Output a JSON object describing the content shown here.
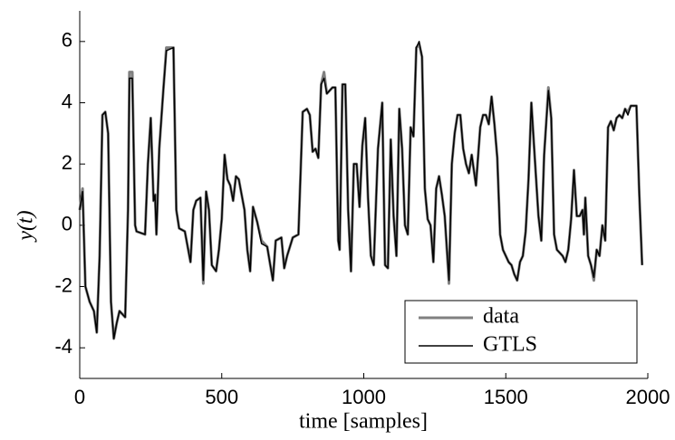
{
  "chart_data": {
    "type": "line",
    "x_label": "time [samples]",
    "y_label": "y(t)",
    "xlim": [
      0,
      2000
    ],
    "ylim": [
      -5,
      7
    ],
    "xticks": [
      0,
      500,
      1000,
      1500,
      2000
    ],
    "yticks": [
      -4,
      -2,
      0,
      2,
      4,
      6
    ],
    "legend": "lower right",
    "x": [
      0,
      10,
      20,
      35,
      50,
      60,
      70,
      80,
      90,
      100,
      110,
      120,
      130,
      140,
      150,
      160,
      170,
      175,
      185,
      195,
      200,
      230,
      240,
      250,
      260,
      265,
      270,
      280,
      295,
      305,
      330,
      340,
      350,
      370,
      390,
      400,
      410,
      425,
      435,
      445,
      455,
      465,
      480,
      490,
      500,
      510,
      520,
      530,
      540,
      550,
      560,
      570,
      580,
      590,
      600,
      610,
      625,
      640,
      660,
      680,
      690,
      710,
      720,
      730,
      750,
      770,
      785,
      800,
      810,
      820,
      830,
      840,
      850,
      860,
      870,
      880,
      890,
      900,
      910,
      915,
      925,
      935,
      945,
      955,
      965,
      975,
      985,
      995,
      1005,
      1015,
      1025,
      1035,
      1050,
      1065,
      1075,
      1085,
      1095,
      1105,
      1115,
      1125,
      1135,
      1145,
      1155,
      1165,
      1175,
      1185,
      1195,
      1205,
      1215,
      1225,
      1235,
      1245,
      1255,
      1265,
      1275,
      1285,
      1300,
      1310,
      1320,
      1330,
      1340,
      1350,
      1360,
      1370,
      1380,
      1395,
      1410,
      1420,
      1430,
      1440,
      1450,
      1460,
      1470,
      1480,
      1490,
      1500,
      1510,
      1520,
      1530,
      1540,
      1550,
      1560,
      1570,
      1580,
      1590,
      1600,
      1615,
      1625,
      1635,
      1650,
      1660,
      1670,
      1680,
      1700,
      1710,
      1720,
      1730,
      1740,
      1750,
      1760,
      1770,
      1775,
      1780,
      1790,
      1800,
      1810,
      1820,
      1830,
      1840,
      1850,
      1860,
      1870,
      1880,
      1890,
      1900,
      1910,
      1920,
      1930,
      1940,
      1950,
      1960,
      1970,
      1980
    ],
    "series": [
      {
        "name": "data",
        "color": "#808080",
        "values": [
          0.5,
          1.2,
          -2.0,
          -2.5,
          -2.8,
          -3.5,
          -1.0,
          3.6,
          3.7,
          3.0,
          -2.5,
          -3.7,
          -3.2,
          -2.8,
          -2.9,
          -3.0,
          0.5,
          5.0,
          5.0,
          0,
          -0.2,
          -0.3,
          2.0,
          3.5,
          0.8,
          1.0,
          -0.3,
          2.5,
          4.5,
          5.8,
          5.8,
          0.5,
          -0.1,
          -0.2,
          -1.2,
          0.5,
          0.8,
          0.9,
          -1.9,
          1.1,
          0.5,
          -1.3,
          -1.5,
          -0.8,
          0.2,
          2.3,
          1.5,
          1.3,
          0.8,
          1.6,
          1.5,
          1.0,
          0.5,
          -0.8,
          -1.5,
          0.6,
          0.1,
          -0.5,
          -0.7,
          -1.8,
          -0.5,
          -0.4,
          -1.4,
          -1.0,
          -0.4,
          -0.3,
          3.7,
          3.8,
          3.6,
          2.4,
          2.5,
          2.2,
          4.6,
          5.0,
          4.3,
          4.4,
          4.5,
          4.5,
          -0.5,
          -0.8,
          4.6,
          4.6,
          0.5,
          -1.5,
          2.0,
          2.0,
          0.6,
          2.6,
          3.5,
          0.9,
          -1.0,
          -1.3,
          2.5,
          4.0,
          -1.3,
          -1.4,
          2.8,
          0.3,
          -1.0,
          3.8,
          2.5,
          0,
          -0.3,
          3.2,
          2.9,
          5.8,
          5.9,
          5.5,
          1.2,
          0.2,
          0,
          -1.2,
          1.2,
          1.6,
          1.0,
          0.3,
          -1.9,
          2.0,
          3.0,
          3.6,
          3.6,
          2.5,
          2.0,
          1.7,
          2.3,
          1.3,
          3.2,
          3.6,
          3.6,
          3.3,
          4.2,
          3.3,
          2.2,
          -0.3,
          -0.8,
          -1.0,
          -1.2,
          -1.3,
          -1.6,
          -1.8,
          -1.2,
          -1.0,
          -0.2,
          1.5,
          4.0,
          2.5,
          0.3,
          -0.5,
          2.3,
          4.5,
          3.5,
          -0.3,
          -0.8,
          -1.0,
          -1.2,
          -0.8,
          0.2,
          1.8,
          0.3,
          0.3,
          0.5,
          -0.3,
          0.9,
          -1.0,
          -1.3,
          -1.8,
          -0.8,
          -1.0,
          0,
          -0.5,
          3.2,
          3.4,
          3.1,
          3.5,
          3.6,
          3.5,
          3.8,
          3.7,
          3.9,
          3.9,
          3.9,
          1.0,
          -1.3
        ]
      },
      {
        "name": "GTLS",
        "color": "#000000",
        "values": [
          0.5,
          1.1,
          -2.0,
          -2.5,
          -2.8,
          -3.5,
          -1.0,
          3.6,
          3.7,
          3.0,
          -2.5,
          -3.7,
          -3.2,
          -2.8,
          -2.9,
          -3.0,
          0.5,
          4.8,
          4.8,
          0,
          -0.2,
          -0.3,
          2.0,
          3.5,
          0.8,
          1.0,
          -0.3,
          2.5,
          4.5,
          5.7,
          5.8,
          0.5,
          -0.1,
          -0.2,
          -1.2,
          0.5,
          0.8,
          0.9,
          -1.8,
          1.1,
          0.5,
          -1.3,
          -1.5,
          -0.8,
          0.2,
          2.3,
          1.5,
          1.3,
          0.8,
          1.6,
          1.5,
          1.0,
          0.5,
          -0.8,
          -1.5,
          0.6,
          0.1,
          -0.6,
          -0.7,
          -1.8,
          -0.5,
          -0.4,
          -1.4,
          -1.0,
          -0.4,
          -0.3,
          3.7,
          3.8,
          3.6,
          2.4,
          2.5,
          2.2,
          4.6,
          4.8,
          4.3,
          4.4,
          4.5,
          4.5,
          -0.5,
          -0.8,
          4.6,
          4.6,
          0.5,
          -1.5,
          2.0,
          2.0,
          0.6,
          2.6,
          3.5,
          0.9,
          -1.0,
          -1.3,
          2.5,
          4.0,
          -1.3,
          -1.4,
          2.8,
          0.3,
          -1.0,
          3.8,
          2.5,
          0,
          -0.3,
          3.2,
          2.9,
          5.8,
          6.0,
          5.5,
          1.2,
          0.2,
          0,
          -1.2,
          1.2,
          1.6,
          1.0,
          0.3,
          -1.8,
          2.0,
          3.0,
          3.6,
          3.6,
          2.5,
          2.0,
          1.7,
          2.3,
          1.3,
          3.2,
          3.6,
          3.6,
          3.3,
          4.2,
          3.3,
          2.2,
          -0.3,
          -0.8,
          -1.0,
          -1.2,
          -1.3,
          -1.6,
          -1.8,
          -1.2,
          -1.0,
          -0.2,
          1.5,
          4.0,
          2.5,
          0.3,
          -0.5,
          2.3,
          4.4,
          3.5,
          -0.3,
          -0.8,
          -1.0,
          -1.2,
          -0.8,
          0.2,
          1.8,
          0.3,
          0.3,
          0.5,
          -0.3,
          0.9,
          -1.0,
          -1.3,
          -1.7,
          -0.8,
          -1.0,
          0,
          -0.5,
          3.2,
          3.4,
          3.1,
          3.5,
          3.6,
          3.5,
          3.8,
          3.6,
          3.9,
          3.9,
          3.9,
          1.0,
          -1.3
        ]
      }
    ]
  }
}
